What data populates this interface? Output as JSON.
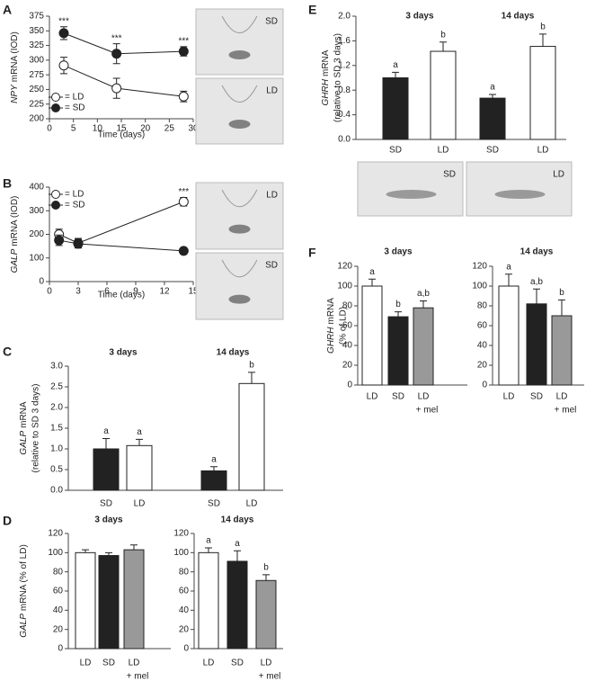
{
  "chart_data": [
    {
      "type": "line",
      "panel": "A",
      "ylabel": [
        "NPY",
        "mRNA (IOD)"
      ],
      "xlabel": "Time (days)",
      "xlim": [
        0,
        30
      ],
      "xticks": [
        0,
        5,
        10,
        15,
        20,
        25,
        30
      ],
      "ylim": [
        200,
        375
      ],
      "yticks": [
        200,
        225,
        250,
        275,
        300,
        325,
        350,
        375
      ],
      "series": [
        {
          "name": "= LD",
          "color": "#222222",
          "fill": "#ffffff",
          "x": [
            3,
            14,
            28
          ],
          "values": [
            291,
            252,
            238
          ],
          "errors": [
            14,
            17,
            9
          ]
        },
        {
          "name": "= SD",
          "color": "#222222",
          "fill": "#222222",
          "x": [
            3,
            14,
            28
          ],
          "values": [
            346,
            311,
            315
          ],
          "errors": [
            11,
            17,
            8
          ]
        }
      ],
      "annotations": [
        {
          "x": 3,
          "text": "***"
        },
        {
          "x": 14,
          "text": "***"
        },
        {
          "x": 28,
          "text": "***"
        }
      ],
      "image_labels": [
        "SD",
        "LD"
      ]
    },
    {
      "type": "line",
      "panel": "B",
      "ylabel": [
        "GALP",
        "mRNA (IOD)"
      ],
      "xlabel": "Time (days)",
      "xlim": [
        0,
        15
      ],
      "xticks": [
        0,
        3,
        6,
        9,
        12,
        15
      ],
      "ylim": [
        0,
        400
      ],
      "yticks": [
        0,
        100,
        200,
        300,
        400
      ],
      "series": [
        {
          "name": "= LD",
          "color": "#222222",
          "fill": "#ffffff",
          "x": [
            1,
            3,
            14
          ],
          "values": [
            200,
            163,
            338
          ],
          "errors": [
            22,
            20,
            18
          ]
        },
        {
          "name": "= SD",
          "color": "#222222",
          "fill": "#222222",
          "x": [
            1,
            3,
            14
          ],
          "values": [
            175,
            160,
            130
          ],
          "errors": [
            22,
            18,
            10
          ]
        }
      ],
      "annotations": [
        {
          "x": 14,
          "text": "***"
        }
      ],
      "image_labels": [
        "LD",
        "SD"
      ]
    },
    {
      "type": "bar",
      "panel": "C",
      "ylabel": [
        "GALP",
        "mRNA"
      ],
      "ylabel2": "(relative to SD 3 days)",
      "groups": [
        "3 days",
        "14 days"
      ],
      "categories": [
        "SD",
        "LD",
        "SD",
        "LD"
      ],
      "values": [
        1.0,
        1.08,
        0.47,
        2.58
      ],
      "errors": [
        0.25,
        0.15,
        0.1,
        0.27
      ],
      "letters": [
        "a",
        "a",
        "a",
        "b"
      ],
      "colors": [
        "#222222",
        "#ffffff",
        "#222222",
        "#ffffff"
      ],
      "ylim": [
        0,
        3
      ],
      "yticks": [
        {
          "value": 0,
          "label": "0.0"
        },
        0.5,
        {
          "value": 1,
          "label": "1.0"
        },
        1.5,
        {
          "value": 2,
          "label": "2.0"
        },
        2.5,
        {
          "value": 3,
          "label": "3.0"
        }
      ]
    },
    {
      "type": "bar",
      "panel": "D",
      "ylabel": [
        "GALP",
        "mRNA (% of LD)"
      ],
      "groups": [
        "3 days"
      ],
      "categories": [
        "LD",
        "SD",
        "LD"
      ],
      "category_notes": [
        null,
        null,
        "+ mel"
      ],
      "values": [
        100,
        97,
        103
      ],
      "errors": [
        3,
        3,
        5
      ],
      "colors": [
        "#ffffff",
        "#222222",
        "#999999"
      ],
      "ylim": [
        0,
        120
      ],
      "yticks": [
        0,
        20,
        40,
        60,
        80,
        100,
        120
      ]
    },
    {
      "type": "bar",
      "groups": [
        "14 days"
      ],
      "categories": [
        "LD",
        "SD",
        "LD"
      ],
      "category_notes": [
        null,
        null,
        "+ mel"
      ],
      "values": [
        100,
        91,
        71
      ],
      "errors": [
        5,
        11,
        6
      ],
      "letters": [
        "a",
        "a",
        "b"
      ],
      "colors": [
        "#ffffff",
        "#222222",
        "#999999"
      ],
      "ylim": [
        0,
        120
      ],
      "yticks": [
        0,
        20,
        40,
        60,
        80,
        100,
        120
      ]
    },
    {
      "type": "bar",
      "panel": "E",
      "ylabel": [
        "GHRH",
        "mRNA"
      ],
      "ylabel2": "(relative to SD 3 days)",
      "groups": [
        "3 days",
        "14 days"
      ],
      "categories": [
        "SD",
        "LD",
        "SD",
        "LD"
      ],
      "values": [
        1.0,
        1.43,
        0.67,
        1.51
      ],
      "errors": [
        0.09,
        0.15,
        0.06,
        0.2
      ],
      "letters": [
        "a",
        "b",
        "a",
        "b"
      ],
      "colors": [
        "#222222",
        "#ffffff",
        "#222222",
        "#ffffff"
      ],
      "ylim": [
        0,
        2
      ],
      "yticks": [
        {
          "value": 0,
          "label": "0.0"
        },
        0.4,
        0.8,
        1.2,
        1.6,
        {
          "value": 2,
          "label": "2.0"
        }
      ],
      "image_labels": [
        "SD",
        "LD"
      ]
    },
    {
      "type": "bar",
      "panel": "F",
      "ylabel": [
        "GHRH",
        "mRNA"
      ],
      "ylabel2": "(% of LD)",
      "groups": [
        "3 days"
      ],
      "categories": [
        "LD",
        "SD",
        "LD"
      ],
      "category_notes": [
        null,
        null,
        "+ mel"
      ],
      "values": [
        100,
        69,
        78
      ],
      "errors": [
        7,
        5,
        7
      ],
      "letters": [
        "a",
        "b",
        "a,b"
      ],
      "colors": [
        "#ffffff",
        "#222222",
        "#999999"
      ],
      "ylim": [
        0,
        120
      ],
      "yticks": [
        0,
        20,
        40,
        60,
        80,
        100,
        120
      ]
    },
    {
      "type": "bar",
      "groups": [
        "14 days"
      ],
      "categories": [
        "LD",
        "SD",
        "LD"
      ],
      "category_notes": [
        null,
        null,
        "+ mel"
      ],
      "values": [
        100,
        82,
        70
      ],
      "errors": [
        12,
        15,
        16
      ],
      "letters": [
        "a",
        "a,b",
        "b"
      ],
      "colors": [
        "#ffffff",
        "#222222",
        "#999999"
      ],
      "ylim": [
        0,
        120
      ],
      "yticks": [
        0,
        20,
        40,
        60,
        80,
        100,
        120
      ]
    }
  ]
}
